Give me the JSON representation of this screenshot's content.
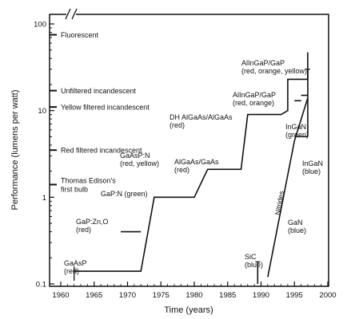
{
  "chart_data": {
    "type": "line",
    "xlabel": "Time (years)",
    "ylabel": "Performance (lumens per watt)",
    "x_scale": "linear",
    "y_scale": "log",
    "xlim": [
      1960,
      2000
    ],
    "ylim": [
      0.1,
      100
    ],
    "x_ticks": [
      "1960",
      "1965",
      "1970",
      "1975",
      "1980",
      "1985",
      "1990",
      "1995",
      "2000"
    ],
    "y_ticks": [
      "0.1",
      "1",
      "10",
      "100"
    ],
    "axis_break": true,
    "grid": false,
    "color": "#111111",
    "reference_levels": [
      {
        "label": "Fluorescent",
        "value": 75
      },
      {
        "label": "Unfiltered incandescent",
        "value": 17
      },
      {
        "label": "Yellow filtered incandescent",
        "value": 11
      },
      {
        "label": "Red filtered incandescent",
        "value": 3.5
      },
      {
        "label": "Thomas Edison's first bulb",
        "value": 1.4
      }
    ],
    "series": [
      {
        "points": [
          [
            1962,
            0.14
          ],
          [
            1972,
            0.14
          ],
          [
            1974,
            1.0
          ],
          [
            1980,
            1.0
          ],
          [
            1982,
            2.1
          ],
          [
            1987,
            2.1
          ],
          [
            1988,
            9.0
          ],
          [
            1993,
            9.0
          ],
          [
            1994,
            10.0
          ],
          [
            1994,
            23
          ],
          [
            1997,
            23
          ],
          [
            1997,
            47
          ]
        ]
      },
      {
        "points": [
          [
            1991,
            0.12
          ],
          [
            1995,
            4.5
          ],
          [
            1997,
            14
          ]
        ]
      }
    ],
    "segments": [
      {
        "x": [
          1969,
          1972
        ],
        "y": [
          0.4,
          0.4
        ]
      },
      {
        "x": [
          1995,
          1997
        ],
        "y": [
          5,
          5
        ]
      },
      {
        "x": [
          1995,
          1996
        ],
        "y": [
          13,
          13
        ]
      },
      {
        "x": [
          1996,
          1997
        ],
        "y": [
          15,
          15
        ]
      }
    ],
    "error_bars": [
      {
        "x": 1989.5,
        "y_low": 0.1,
        "y_high": 0.18
      },
      {
        "x": 1997,
        "y_low": 5,
        "y_high": 30
      }
    ],
    "annotations": [
      {
        "lines": [
          "GaAsP",
          "(red)"
        ]
      },
      {
        "lines": [
          "GaP:Zn,O",
          "(red)"
        ]
      },
      {
        "lines": [
          "GaAsP:N",
          "(red, yellow)"
        ]
      },
      {
        "lines": [
          "GaP:N  (green)"
        ]
      },
      {
        "lines": [
          "AlGaAs/GaAs",
          "(red)"
        ]
      },
      {
        "lines": [
          "DH AlGaAs/AlGaAs",
          "(red)"
        ]
      },
      {
        "lines": [
          "AlInGaP/GaP",
          "(red, orange)"
        ]
      },
      {
        "lines": [
          "AlInGaP/GaP",
          "(red, orange, yellow)"
        ]
      },
      {
        "lines": [
          "InGaN",
          "(green)"
        ]
      },
      {
        "lines": [
          "InGaN",
          "(blue)"
        ]
      },
      {
        "lines": [
          "GaN",
          "(blue)"
        ]
      },
      {
        "lines": [
          "SiC",
          "(blue)"
        ]
      },
      {
        "lines": [
          "Nitrides"
        ]
      }
    ]
  }
}
